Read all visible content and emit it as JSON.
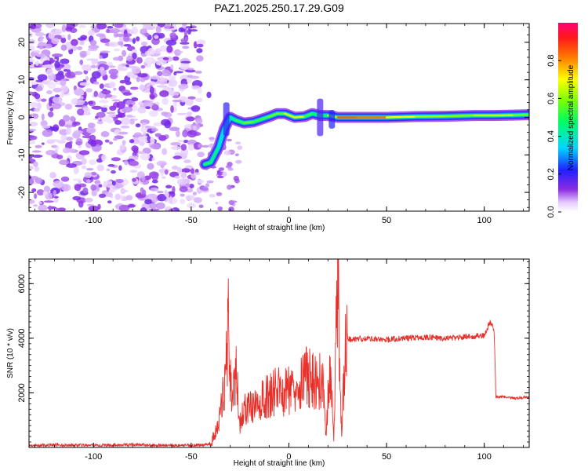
{
  "title": "PAZ1.2025.250.17.29.G09",
  "chart_data": [
    {
      "type": "heatmap",
      "xlabel": "Height of straight line (km)",
      "ylabel": "Frequency (Hz)",
      "xlim": [
        -133,
        123
      ],
      "ylim": [
        -25,
        25
      ],
      "xticks": [
        -100,
        -50,
        0,
        50,
        100
      ],
      "yticks": [
        -20,
        -10,
        0,
        10,
        20
      ],
      "colorbar": {
        "label": "Normalized spectral amplitude",
        "ticks": [
          "0.0",
          "0.2",
          "0.4",
          "0.6",
          "0.8"
        ],
        "range": [
          0,
          1
        ]
      },
      "ridge": [
        {
          "x": -43,
          "y": -12.5,
          "v": 0.45
        },
        {
          "x": -40,
          "y": -12,
          "v": 0.55
        },
        {
          "x": -36,
          "y": -8,
          "v": 0.35
        },
        {
          "x": -33,
          "y": -3,
          "v": 0.35
        },
        {
          "x": -30,
          "y": 0,
          "v": 0.4
        },
        {
          "x": -27,
          "y": -0.8,
          "v": 0.45
        },
        {
          "x": -23,
          "y": -1.5,
          "v": 0.6
        },
        {
          "x": -18,
          "y": -1.2,
          "v": 0.55
        },
        {
          "x": -14,
          "y": -0.5,
          "v": 0.5
        },
        {
          "x": -10,
          "y": 0.2,
          "v": 0.55
        },
        {
          "x": -6,
          "y": 1,
          "v": 0.6
        },
        {
          "x": -2,
          "y": 1,
          "v": 0.55
        },
        {
          "x": 3,
          "y": 0,
          "v": 0.8
        },
        {
          "x": 8,
          "y": 0.2,
          "v": 0.55
        },
        {
          "x": 12,
          "y": 1,
          "v": 0.5
        },
        {
          "x": 16,
          "y": 0.5,
          "v": 0.45
        },
        {
          "x": 20,
          "y": 0.5,
          "v": 0.5
        },
        {
          "x": 25,
          "y": 0,
          "v": 0.8
        },
        {
          "x": 35,
          "y": 0,
          "v": 0.9
        },
        {
          "x": 50,
          "y": 0,
          "v": 0.75
        },
        {
          "x": 65,
          "y": 0.2,
          "v": 0.65
        },
        {
          "x": 80,
          "y": 0.3,
          "v": 0.6
        },
        {
          "x": 95,
          "y": 0.5,
          "v": 0.6
        },
        {
          "x": 105,
          "y": 0.5,
          "v": 0.7
        },
        {
          "x": 115,
          "y": 0.6,
          "v": 0.6
        },
        {
          "x": 123,
          "y": 0.7,
          "v": 0.55
        }
      ]
    },
    {
      "type": "line",
      "xlabel": "Height of straight line (km)",
      "ylabel": "SNR (10 * v/v)",
      "xlim": [
        -133,
        123
      ],
      "ylim": [
        0,
        6900
      ],
      "xticks": [
        -100,
        -50,
        0,
        50,
        100
      ],
      "yticks": [
        2000,
        4000,
        6000
      ],
      "series": [
        {
          "color": "#e8302a",
          "x": [
            -133,
            -120,
            -100,
            -80,
            -60,
            -45,
            -40,
            -36,
            -33,
            -31,
            -29,
            -27,
            -25,
            -22,
            -18,
            -14,
            -10,
            -6,
            -2,
            2,
            6,
            10,
            14,
            17,
            19,
            21,
            23,
            25,
            27,
            29,
            31,
            40,
            50,
            60,
            70,
            80,
            90,
            100,
            103,
            105,
            106,
            110,
            115,
            123
          ],
          "y": [
            60,
            90,
            70,
            100,
            70,
            80,
            150,
            800,
            2300,
            4400,
            1500,
            2700,
            900,
            1500,
            1400,
            1700,
            1900,
            2100,
            2000,
            2300,
            2500,
            2600,
            2300,
            2600,
            400,
            3200,
            200,
            6900,
            300,
            4100,
            3950,
            4000,
            3950,
            4000,
            4050,
            4000,
            4050,
            4100,
            4600,
            4300,
            1850,
            1850,
            1800,
            1850
          ]
        }
      ]
    }
  ]
}
